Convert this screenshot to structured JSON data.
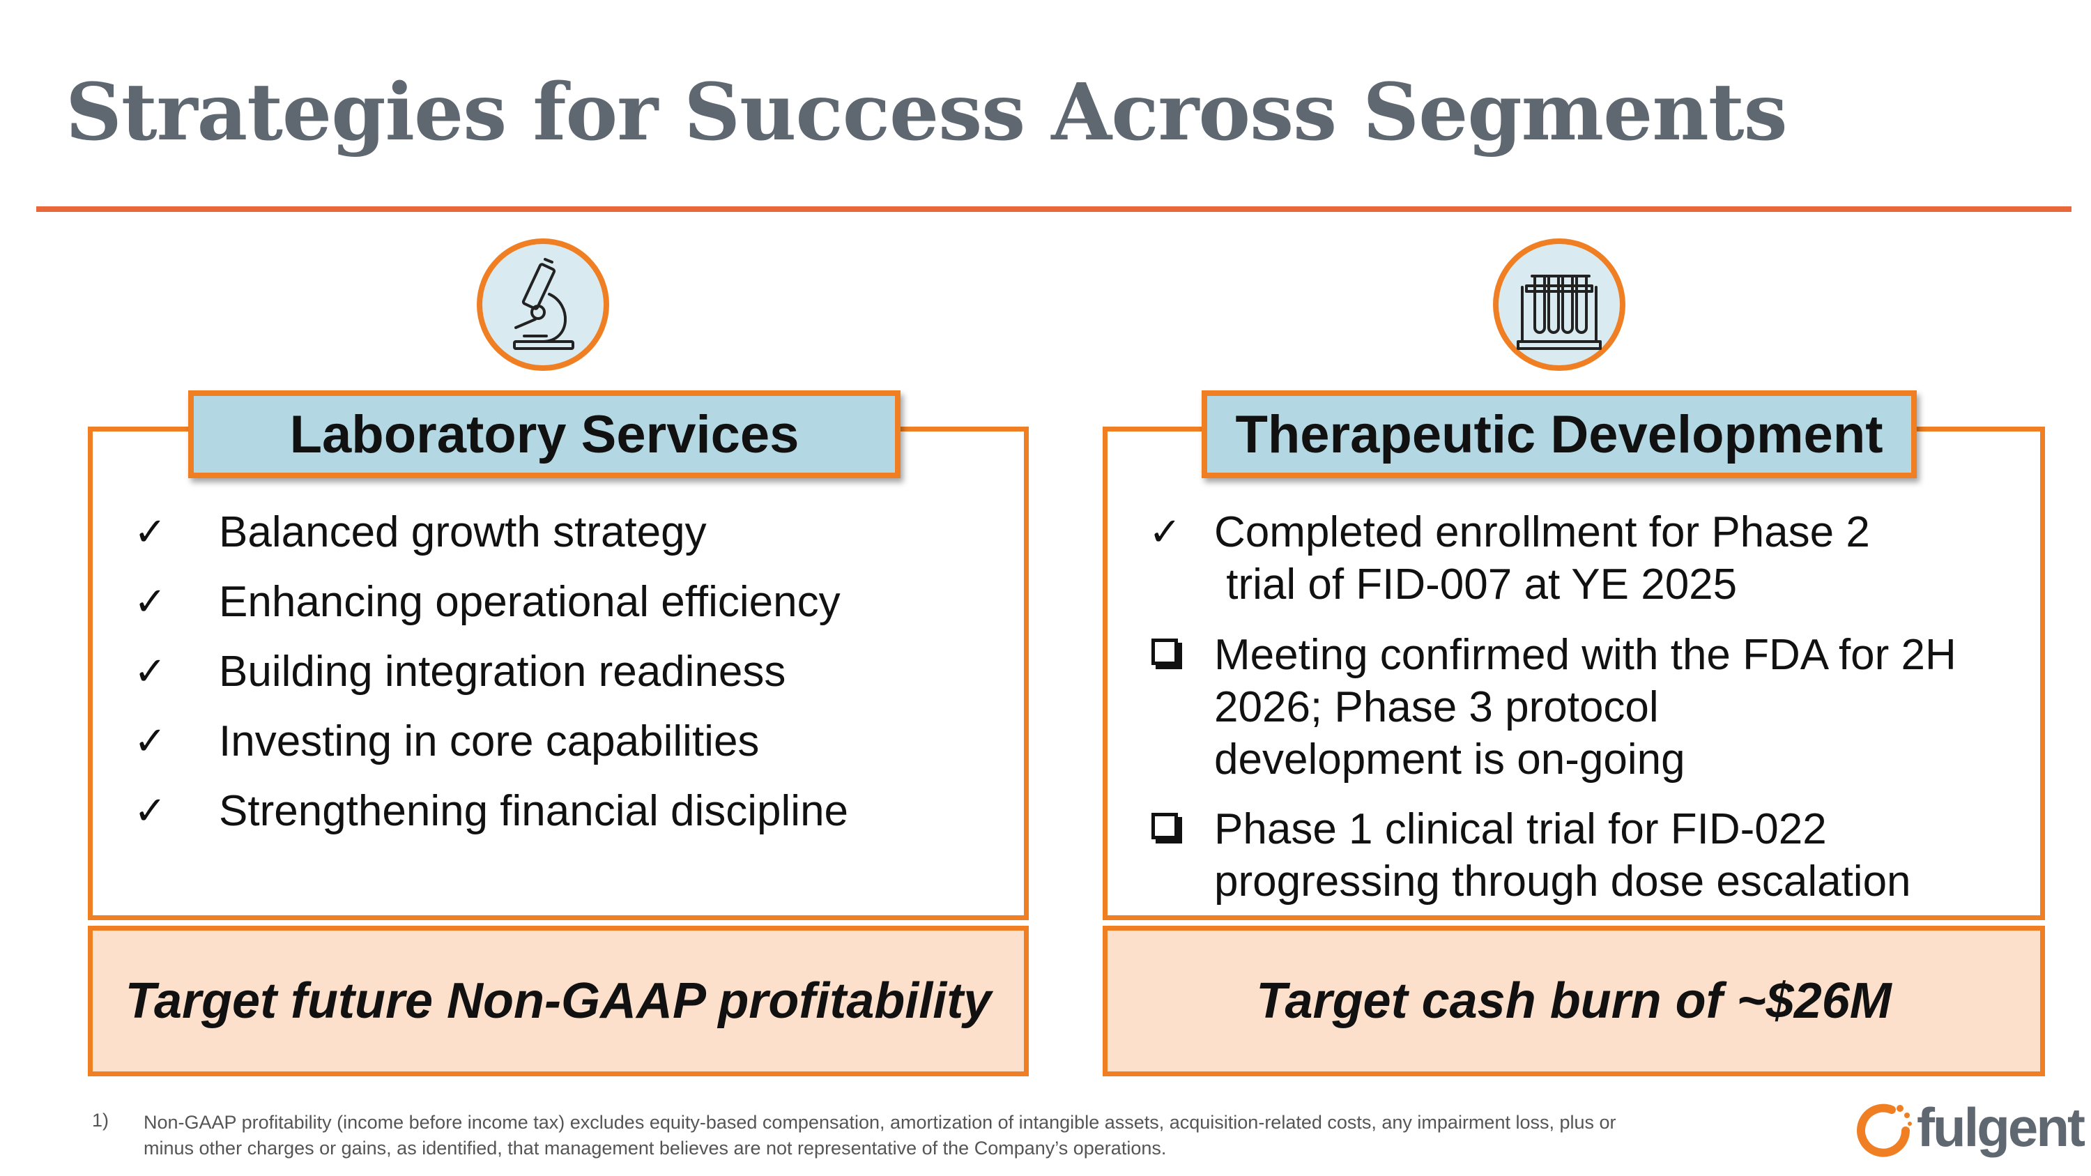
{
  "title": "Strategies for Success Across Segments",
  "colors": {
    "accent": "#ef7f22",
    "rule": "#e8683a",
    "header_fill": "#b4d8e3",
    "target_fill": "#fde0cb",
    "title_gray": "#5f6770"
  },
  "left": {
    "icon": "microscope-icon",
    "heading": "Laboratory Services",
    "mark_check": "✓",
    "items": [
      "Balanced growth strategy",
      "Enhancing operational efficiency",
      "Building integration readiness",
      "Investing in core capabilities",
      "Strengthening financial discipline"
    ],
    "target": "Target future Non-GAAP profitability"
  },
  "right": {
    "icon": "test-tubes-icon",
    "heading": "Therapeutic Development",
    "mark_check": "✓",
    "items": [
      {
        "marker": "check",
        "lines": [
          "Completed enrollment for Phase 2",
          " trial of FID-007 at YE 2025"
        ]
      },
      {
        "marker": "box",
        "lines": [
          "Meeting confirmed with the FDA for 2H",
          "2026; Phase 3 protocol",
          "development is on-going"
        ]
      },
      {
        "marker": "box",
        "lines": [
          "Phase 1 clinical trial for FID-022",
          "progressing through dose escalation"
        ]
      }
    ],
    "target": "Target cash burn of ~$26M"
  },
  "footnote": {
    "number": "1)",
    "line1": "Non-GAAP profitability (income before income tax) excludes equity-based compensation, amortization of intangible assets, acquisition-related costs, any impairment loss, plus or",
    "line2": "minus other charges or gains, as identified, that management believes are not representative of the Company’s operations."
  },
  "logo": {
    "text": "fulgent"
  }
}
